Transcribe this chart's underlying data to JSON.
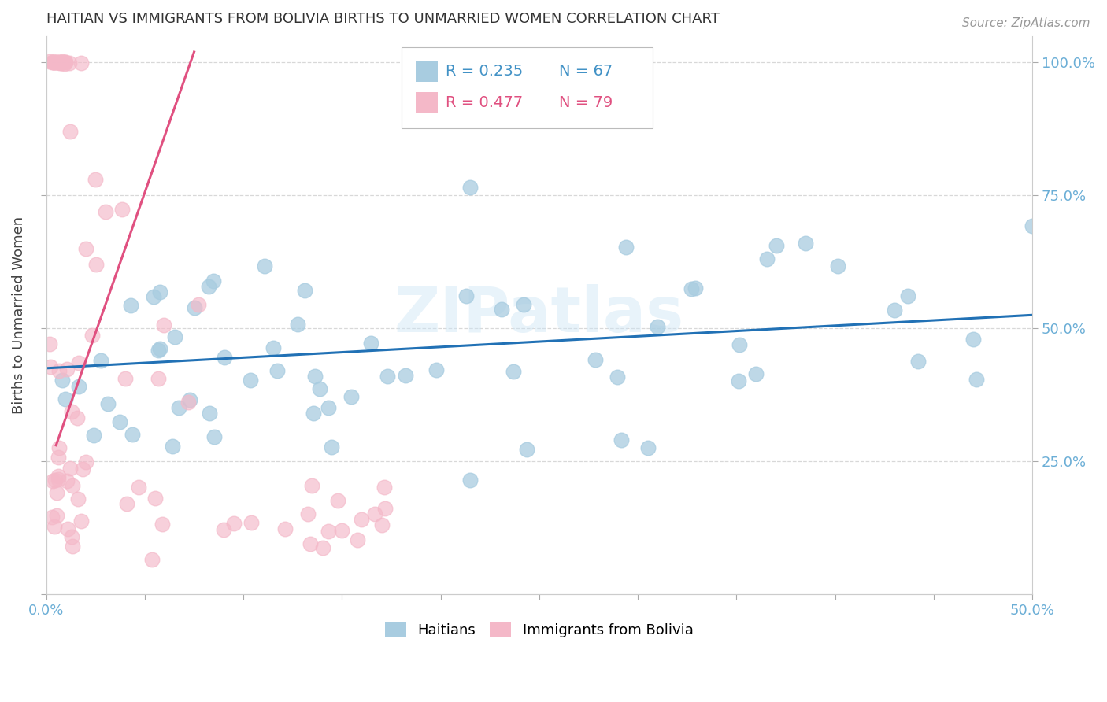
{
  "title": "HAITIAN VS IMMIGRANTS FROM BOLIVIA BIRTHS TO UNMARRIED WOMEN CORRELATION CHART",
  "source": "Source: ZipAtlas.com",
  "ylabel": "Births to Unmarried Women",
  "xlim": [
    0.0,
    0.5
  ],
  "ylim": [
    0.0,
    1.05
  ],
  "legend_r1": "R = 0.235",
  "legend_n1": "N = 67",
  "legend_r2": "R = 0.477",
  "legend_n2": "N = 79",
  "color_blue": "#a8cce0",
  "color_pink": "#f4b8c8",
  "color_blue_line": "#2171b5",
  "color_pink_line": "#e05080",
  "color_blue_text": "#4292c6",
  "color_pink_text": "#e05080",
  "color_axis": "#6baed6",
  "watermark": "ZIPatlas",
  "background_color": "#ffffff",
  "grid_color": "#d8d8d8",
  "haiti_line_x0": 0.0,
  "haiti_line_y0": 0.425,
  "haiti_line_x1": 0.5,
  "haiti_line_y1": 0.525,
  "bolivia_line_x0": 0.005,
  "bolivia_line_y0": 0.28,
  "bolivia_line_x1": 0.075,
  "bolivia_line_y1": 1.02
}
